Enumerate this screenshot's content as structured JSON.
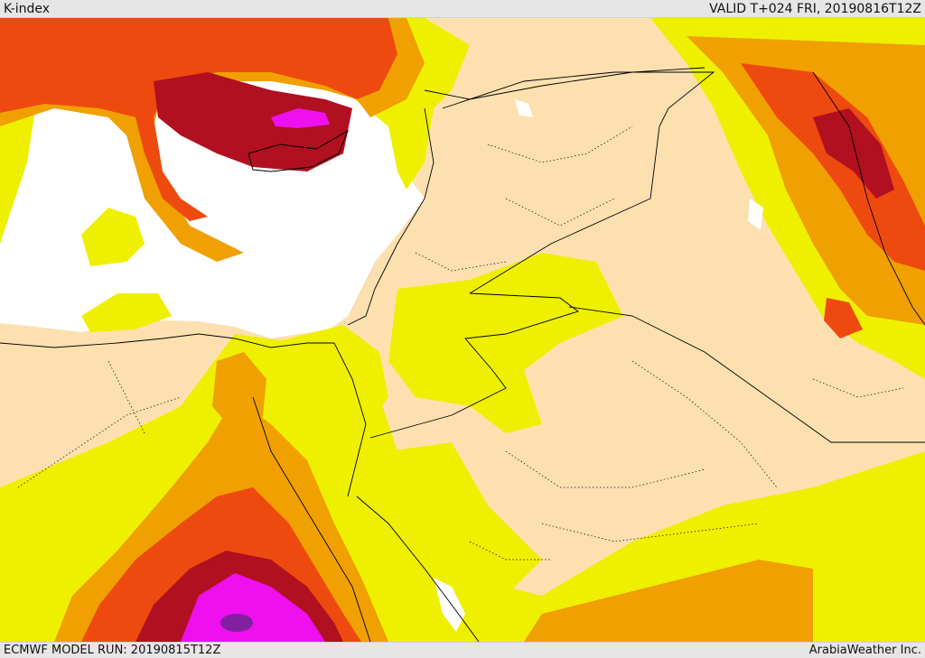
{
  "header": {
    "title": "K-index",
    "valid_time": "VALID T+024 FRI, 20190816T12Z"
  },
  "footer": {
    "model_run": "ECMWF MODEL RUN: 20190815T12Z",
    "credit": "ArabiaWeather Inc."
  },
  "colors": {
    "sea": "#ffffff",
    "land_low": "#fde0b0",
    "level_1": "#eef000",
    "level_2": "#f0a000",
    "level_3": "#ee4a10",
    "level_4": "#b01020",
    "level_5": "#ee10ee",
    "level_6": "#8020a0",
    "border": "#000000"
  }
}
